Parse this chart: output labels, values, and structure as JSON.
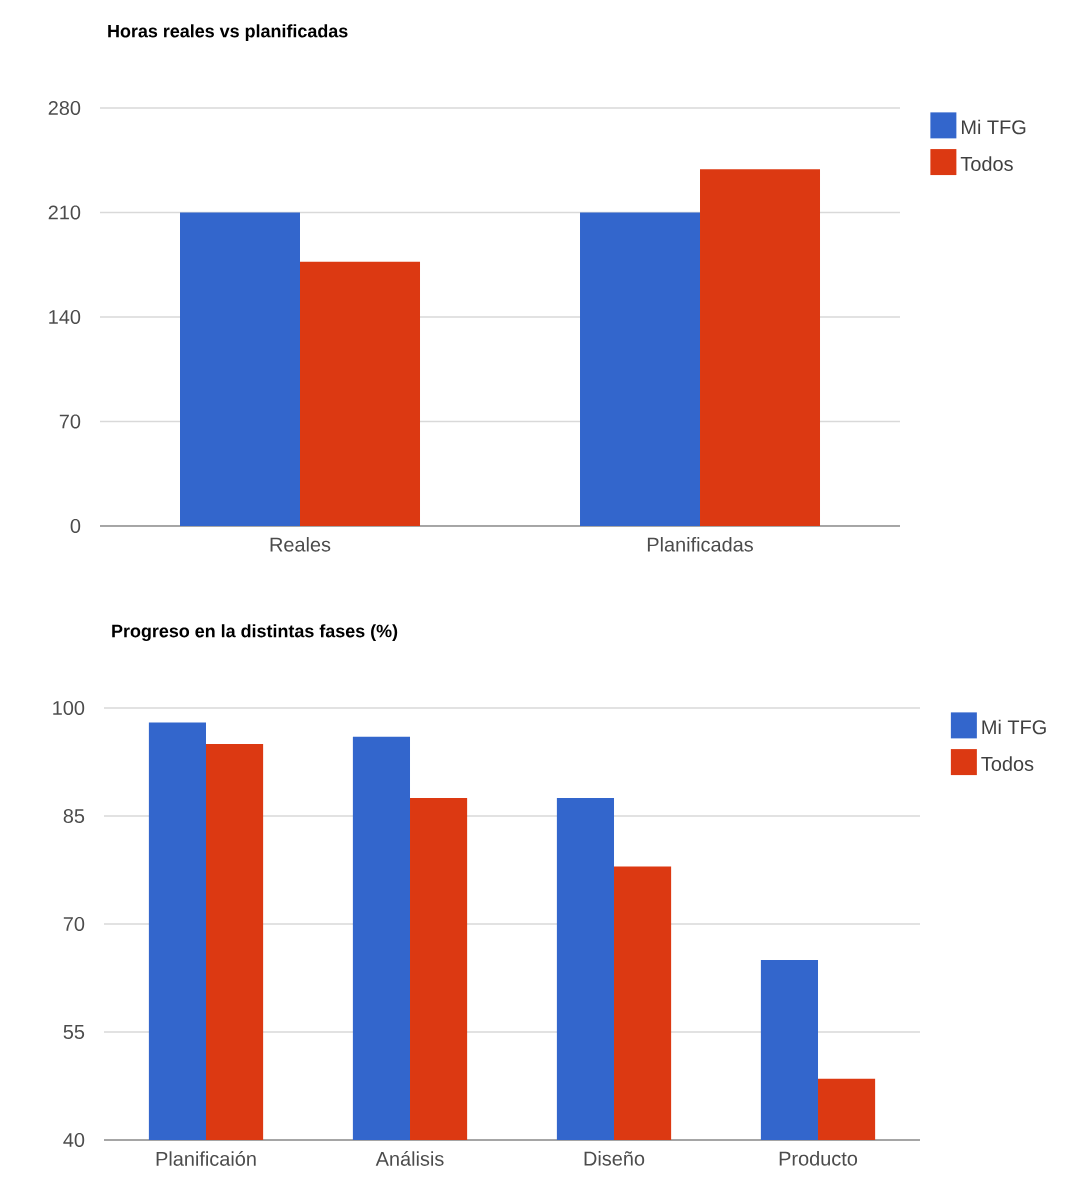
{
  "chart_data": [
    {
      "type": "bar",
      "title": "Horas reales vs planificadas",
      "categories": [
        "Reales",
        "Planificadas"
      ],
      "series": [
        {
          "name": "Mi TFG",
          "color": "#3366cc",
          "values": [
            210,
            210
          ]
        },
        {
          "name": "Todos",
          "color": "#dc3912",
          "values": [
            177,
            239
          ]
        }
      ],
      "ylim": [
        0,
        280
      ],
      "yticks": [
        0,
        70,
        140,
        210,
        280
      ],
      "grid": "y",
      "legend": "top right"
    },
    {
      "type": "bar",
      "title": "Progreso en la distintas fases (%)",
      "categories": [
        "Planificaión",
        "Análisis",
        "Diseño",
        "Producto"
      ],
      "series": [
        {
          "name": "Mi TFG",
          "color": "#3366cc",
          "values": [
            98,
            96,
            87.5,
            65
          ]
        },
        {
          "name": "Todos",
          "color": "#dc3912",
          "values": [
            95,
            87.5,
            78,
            48.5
          ]
        }
      ],
      "ylim": [
        40,
        100
      ],
      "yticks": [
        40,
        55,
        70,
        85,
        100
      ],
      "grid": "y",
      "legend": "top right"
    }
  ]
}
